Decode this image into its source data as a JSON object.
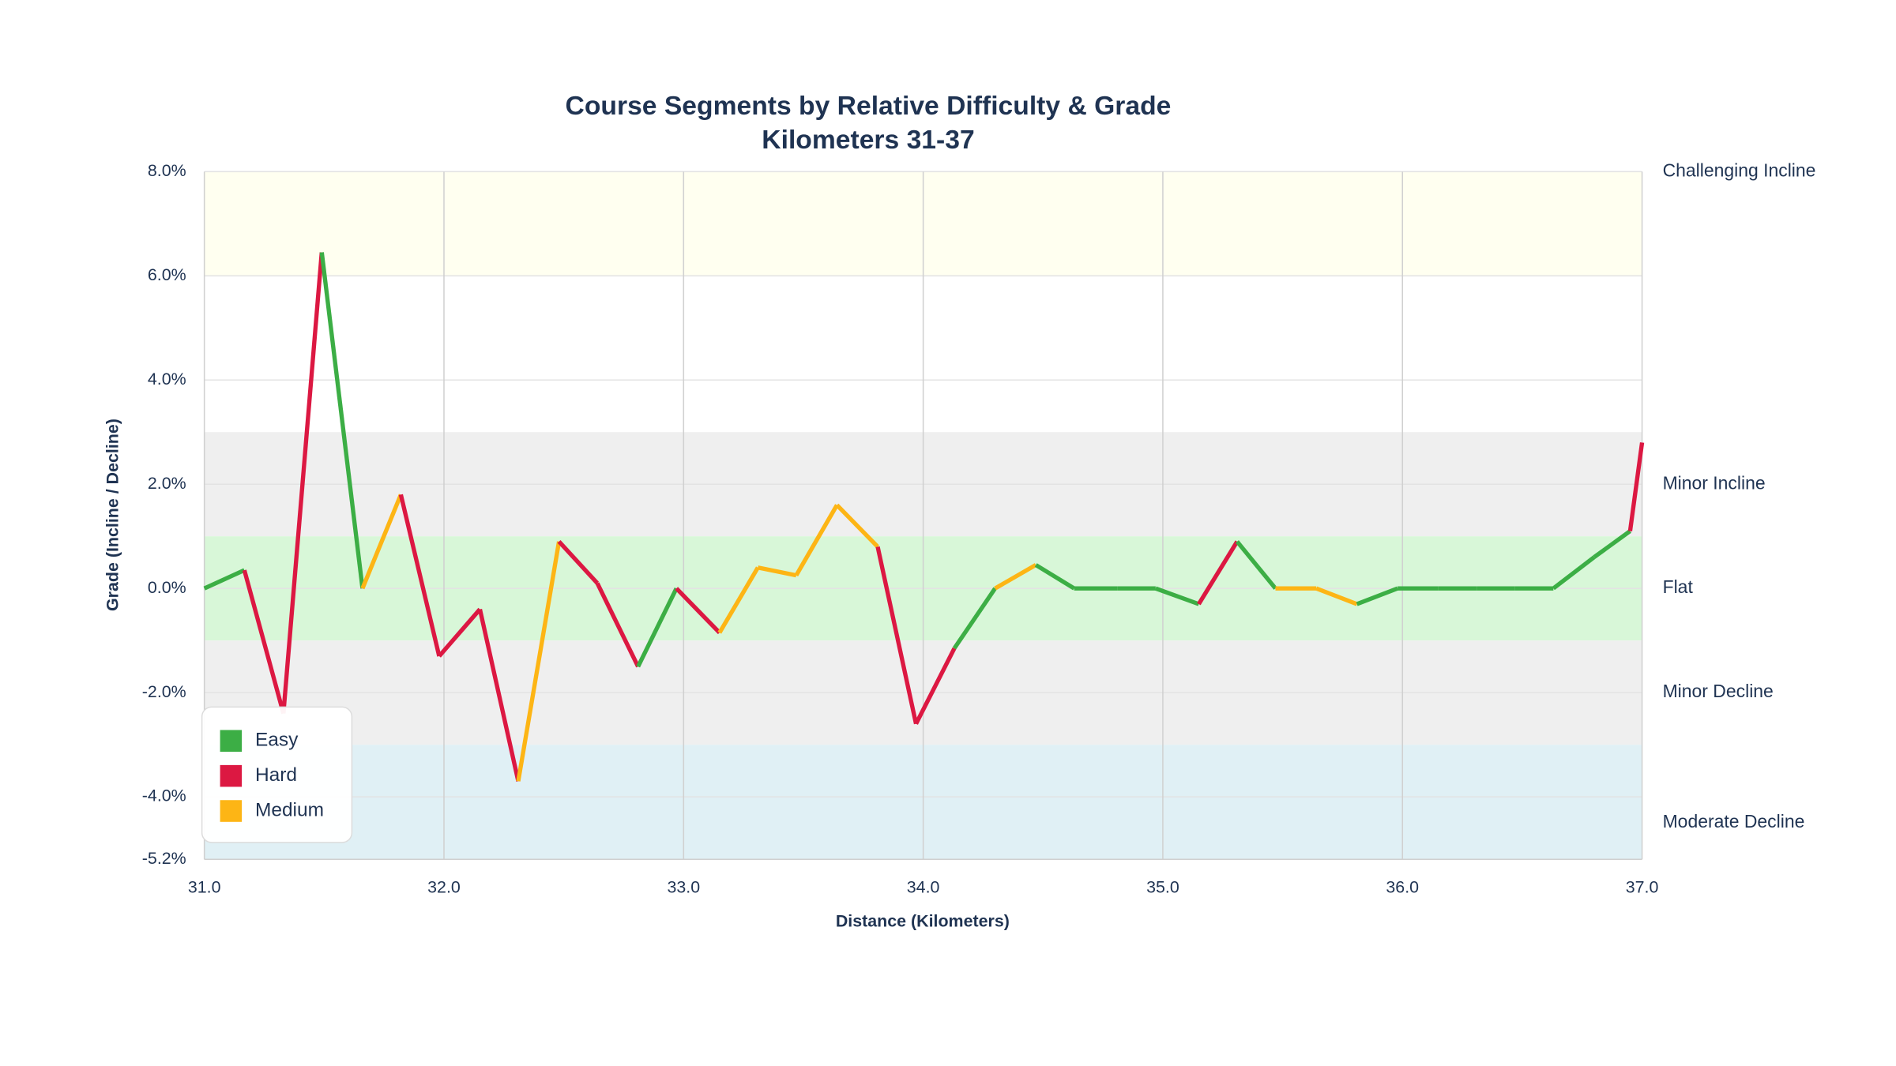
{
  "chart_data": {
    "type": "line",
    "title": "Course Segments by Relative Difficulty & Grade",
    "subtitle": "Kilometers 31-37",
    "x_label": "Distance (Kilometers)",
    "y_label": "Grade (Incline / Decline)",
    "xlim": [
      31,
      37
    ],
    "xticks": [
      {
        "value": 31,
        "label": "31.0"
      },
      {
        "value": 32,
        "label": "32.0"
      },
      {
        "value": 33,
        "label": "33.0"
      },
      {
        "value": 34,
        "label": "34.0"
      },
      {
        "value": 35,
        "label": "35.0"
      },
      {
        "value": 36,
        "label": "36.0"
      },
      {
        "value": 37,
        "label": "37.0"
      }
    ],
    "ylim": [
      -5.2,
      8
    ],
    "yticks": [
      {
        "value": 8,
        "label": "8.0%"
      },
      {
        "value": 6,
        "label": "6.0%"
      },
      {
        "value": 4,
        "label": "4.0%"
      },
      {
        "value": 2,
        "label": "2.0%"
      },
      {
        "value": 0,
        "label": "0.0%"
      },
      {
        "value": -2,
        "label": "-2.0%"
      },
      {
        "value": -4,
        "label": "-4.0%"
      },
      {
        "value": -5.2,
        "label": "-5.2%"
      }
    ],
    "grid": true,
    "bands": [
      {
        "label": "Challenging Incline",
        "from": 6,
        "to": 10,
        "color": "#fffff0"
      },
      {
        "label": "Minor Incline",
        "from": 1,
        "to": 3,
        "color": "#efefef"
      },
      {
        "label": "Flat",
        "from": -1,
        "to": 1,
        "color": "#d8f7d8"
      },
      {
        "label": "Minor Decline",
        "from": -3,
        "to": -1,
        "color": "#efefef"
      },
      {
        "label": "Moderate Decline",
        "from": -6,
        "to": -3,
        "color": "#e0f0f5"
      }
    ],
    "series": [
      {
        "name": "Easy",
        "color": "#3cae45"
      },
      {
        "name": "Hard",
        "color": "#dc1842"
      },
      {
        "name": "Medium",
        "color": "#fdb515"
      }
    ],
    "legend_position": "lower left",
    "x": [
      31.0,
      31.167,
      31.33,
      31.49,
      31.66,
      31.82,
      31.98,
      32.15,
      32.31,
      32.48,
      32.64,
      32.81,
      32.97,
      33.15,
      33.31,
      33.47,
      33.64,
      33.81,
      33.97,
      34.13,
      34.3,
      34.47,
      34.63,
      34.81,
      34.97,
      35.15,
      35.31,
      35.47,
      35.64,
      35.81,
      35.98,
      36.15,
      36.31,
      36.47,
      36.63,
      36.8,
      36.95,
      37.0
    ],
    "values": [
      0,
      0.35,
      -2.4,
      6.45,
      0,
      1.8,
      -1.3,
      -0.4,
      -3.7,
      0.9,
      0.1,
      -1.5,
      0,
      -0.85,
      0.4,
      0.25,
      1.6,
      0.8,
      -2.6,
      -1.15,
      0,
      0.45,
      0,
      0,
      0,
      -0.3,
      0.9,
      0,
      0,
      -0.3,
      0,
      0,
      0,
      0,
      0,
      0.6,
      1.1,
      2.8
    ],
    "segment_difficulty": [
      "Easy",
      "Hard",
      "Hard",
      "Easy",
      "Medium",
      "Hard",
      "Hard",
      "Hard",
      "Medium",
      "Hard",
      "Hard",
      "Easy",
      "Hard",
      "Medium",
      "Medium",
      "Medium",
      "Medium",
      "Hard",
      "Hard",
      "Easy",
      "Medium",
      "Easy",
      "Easy",
      "Easy",
      "Easy",
      "Hard",
      "Easy",
      "Medium",
      "Medium",
      "Easy",
      "Easy",
      "Easy",
      "Easy",
      "Easy",
      "Easy",
      "Easy",
      "Hard"
    ]
  }
}
